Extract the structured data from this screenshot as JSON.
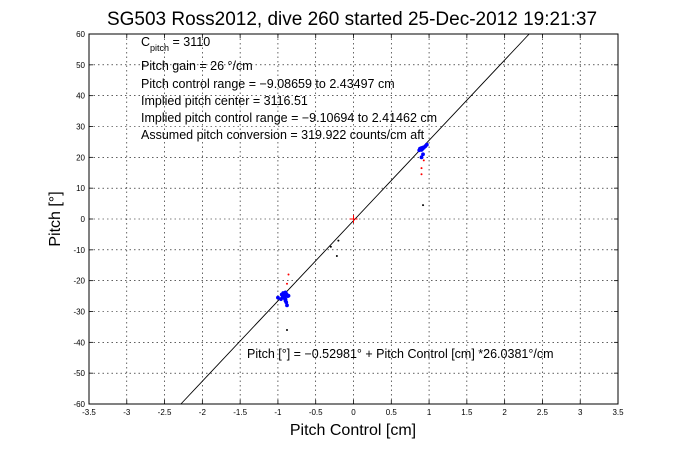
{
  "chart_data": {
    "type": "scatter",
    "title": "SG503 Ross2012, dive 260 started 25-Dec-2012 19:21:37",
    "xlabel": "Pitch Control [cm]",
    "ylabel": "Pitch [°]",
    "xlim": [
      -3.5,
      3.5
    ],
    "ylim": [
      -60,
      60
    ],
    "xticks": [
      -3.5,
      -3,
      -2.5,
      -2,
      -1.5,
      -1,
      -0.5,
      0,
      0.5,
      1,
      1.5,
      2,
      2.5,
      3,
      3.5
    ],
    "yticks": [
      -60,
      -50,
      -40,
      -30,
      -20,
      -10,
      0,
      10,
      20,
      30,
      40,
      50,
      60
    ],
    "xtick_labels": [
      "-3.5",
      "-3",
      "-2.5",
      "-2",
      "-1.5",
      "-1",
      "-0.5",
      "0",
      "0.5",
      "1",
      "1.5",
      "2",
      "2.5",
      "3",
      "3.5"
    ],
    "ytick_labels": [
      "-60",
      "-50",
      "-40",
      "-30",
      "-20",
      "-10",
      "0",
      "10",
      "20",
      "30",
      "40",
      "50",
      "60"
    ],
    "grid": true,
    "annotations": {
      "cpitch_main": "C",
      "cpitch_sub": "pitch",
      "cpitch_value": " = 3110",
      "gain": "Pitch gain = 26 °/cm",
      "control_range": "Pitch control range = −9.08659 to 2.43497 cm",
      "implied_center": "Implied pitch center = 3116.51",
      "implied_range": "Implied pitch control range = −9.10694 to 2.41462 cm",
      "conversion": "Assumed pitch conversion = 319.922 counts/cm aft",
      "fit_equation": "Pitch [°] = −0.52981° + Pitch Control [cm] *26.0381°/cm"
    },
    "fit_line": {
      "intercept": -0.52981,
      "slope": 26.0381
    },
    "colors": {
      "observed": "#0000ff",
      "reference": "#ff0000",
      "minor": "#000000",
      "fit": "#000000"
    },
    "series": [
      {
        "color": "#0000ff",
        "points": [
          [
            0.88,
            22.8
          ],
          [
            0.89,
            22.5
          ],
          [
            0.9,
            23.0
          ],
          [
            0.91,
            22.7
          ],
          [
            0.92,
            23.2
          ],
          [
            0.9,
            22.4
          ],
          [
            0.95,
            23.6
          ],
          [
            0.97,
            24.1
          ],
          [
            0.93,
            23.1
          ],
          [
            0.87,
            22.3
          ],
          [
            0.92,
            21.0
          ],
          [
            0.9,
            20.0
          ],
          [
            -0.95,
            -24.5
          ],
          [
            -0.93,
            -24.0
          ],
          [
            -0.91,
            -24.8
          ],
          [
            -0.9,
            -23.8
          ],
          [
            -0.89,
            -24.3
          ],
          [
            -0.92,
            -25.2
          ],
          [
            -0.88,
            -24.6
          ],
          [
            -0.94,
            -25.5
          ],
          [
            -0.9,
            -26.0
          ],
          [
            -0.89,
            -27.0
          ],
          [
            -0.88,
            -28.0
          ],
          [
            -0.9,
            -26.5
          ],
          [
            -0.87,
            -25.0
          ],
          [
            -0.96,
            -26.0
          ],
          [
            -0.91,
            -25.8
          ],
          [
            -1.0,
            -25.5
          ],
          [
            -0.86,
            -24.9
          ]
        ]
      },
      {
        "color": "#ff0000",
        "points": [
          [
            0.0,
            0.0
          ],
          [
            -0.86,
            -18.0
          ],
          [
            0.9,
            16.5
          ],
          [
            0.9,
            14.5
          ],
          [
            -0.88,
            -21.0
          ],
          [
            0.93,
            19.0
          ]
        ]
      },
      {
        "color": "#000000",
        "points": [
          [
            -0.2,
            -7.0
          ],
          [
            -0.22,
            -12.0
          ],
          [
            -0.88,
            -36.0
          ],
          [
            0.92,
            4.5
          ],
          [
            -0.3,
            -9.0
          ]
        ]
      }
    ]
  }
}
